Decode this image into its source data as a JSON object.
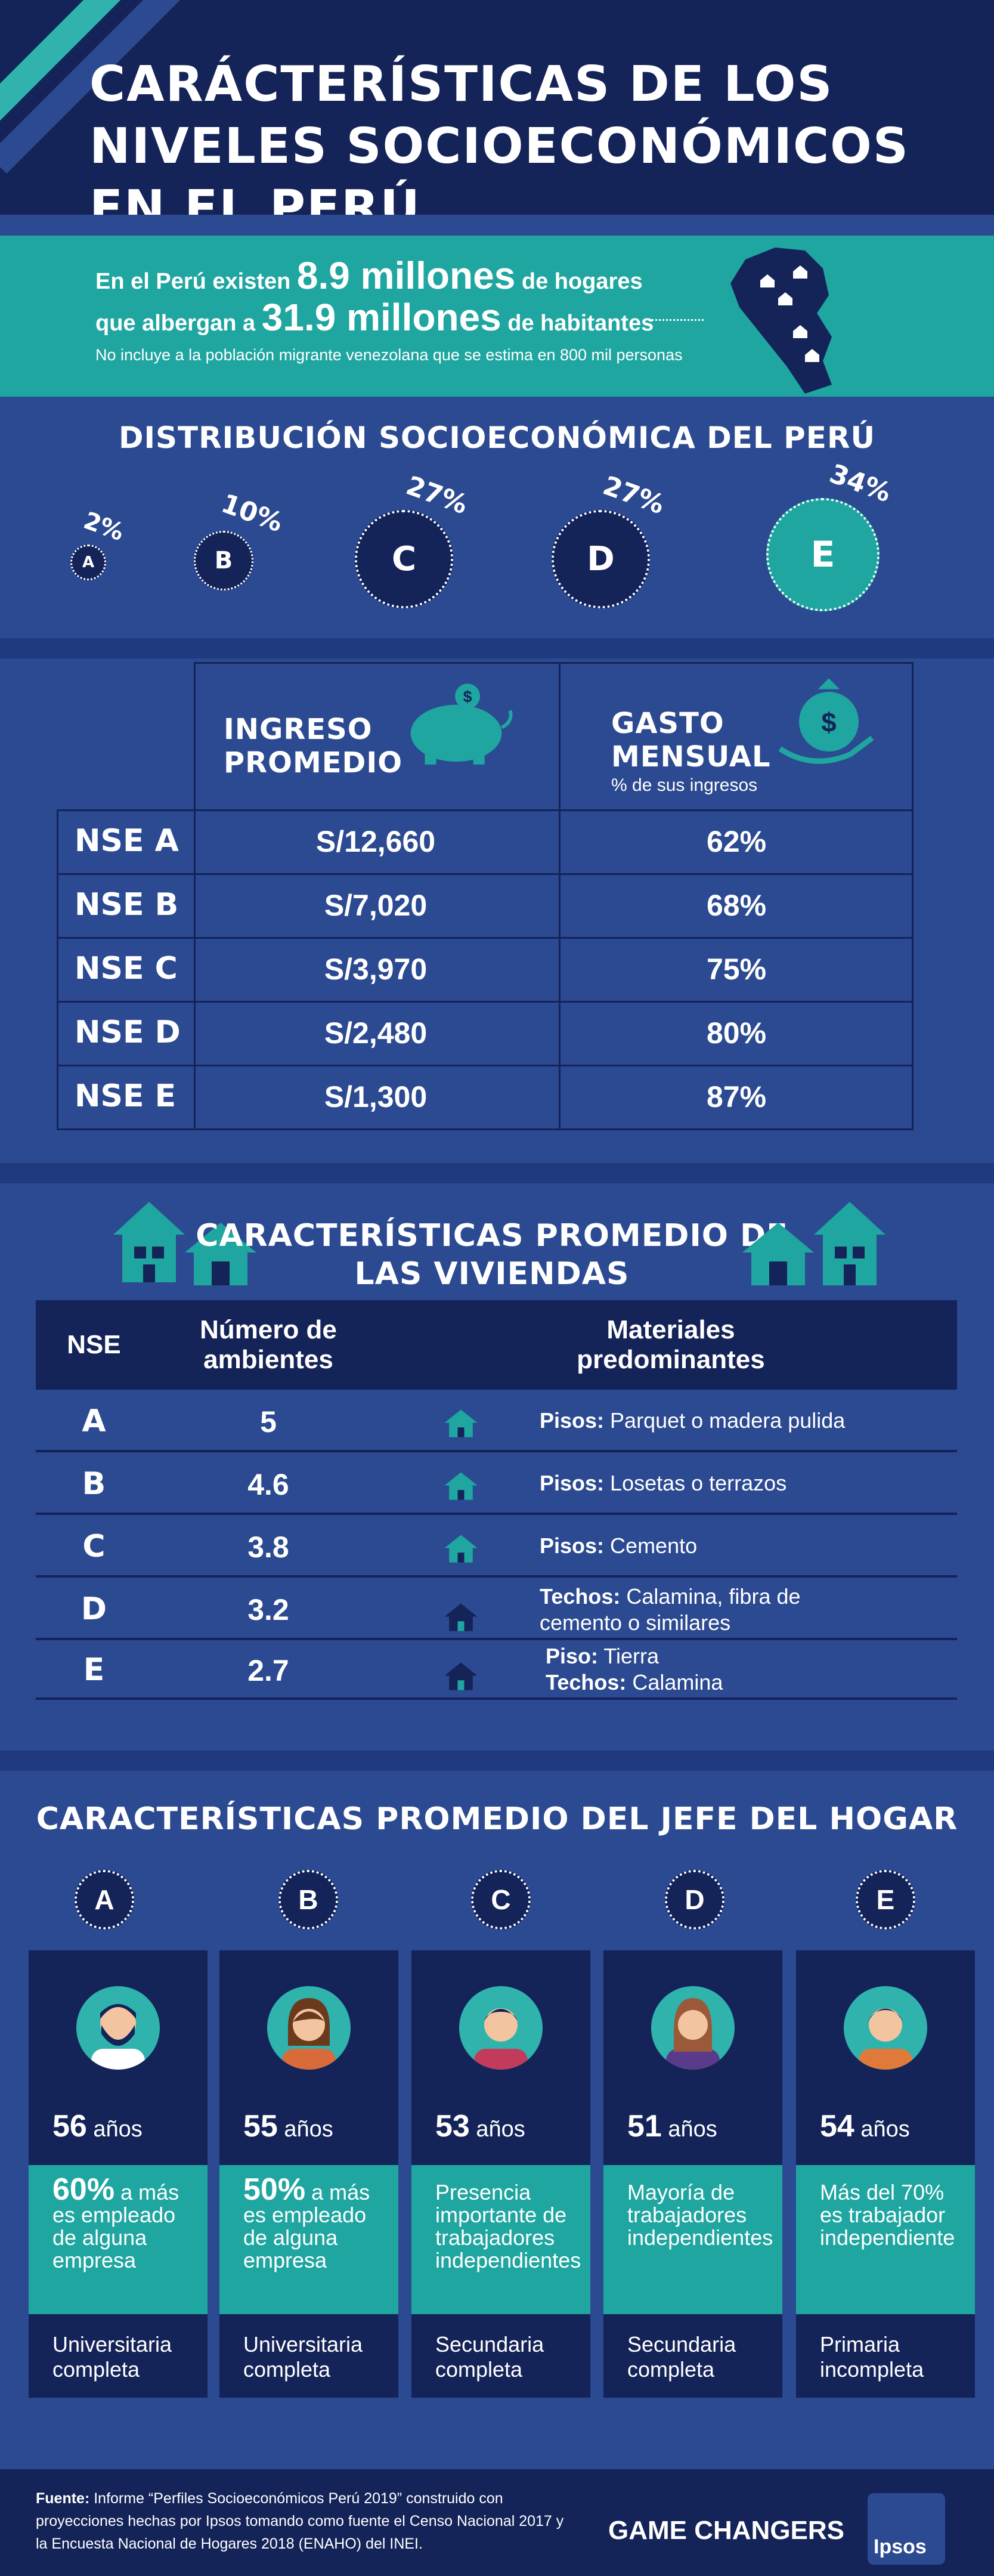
{
  "header": {
    "title": "CARÁCTERÍSTICAS DE LOS NIVELES SOCIOECONÓMICOS EN EL PERÚ"
  },
  "intro": {
    "line1_a": "En el Perú existen ",
    "line1_big": "8.9 millones",
    "line1_b": " de hogares",
    "line2_a": "que albergan a ",
    "line2_big": "31.9 millones",
    "line2_b": " de habitantes",
    "note": "No incluye a la población migrante venezolana que se estima en 800 mil personas"
  },
  "distribution": {
    "title": "DISTRIBUCIÓN SOCIOECONÓMICA DEL PERÚ",
    "items": [
      {
        "label": "A",
        "pct": "2%"
      },
      {
        "label": "B",
        "pct": "10%"
      },
      {
        "label": "C",
        "pct": "27%"
      },
      {
        "label": "D",
        "pct": "27%"
      },
      {
        "label": "E",
        "pct": "34%"
      }
    ]
  },
  "income": {
    "col1": "INGRESO PROMEDIO",
    "col2": "GASTO MENSUAL",
    "col2_sub": "% de sus ingresos",
    "rows": [
      {
        "nse": "NSE A",
        "ingreso": "S/12,660",
        "gasto": "62%"
      },
      {
        "nse": "NSE B",
        "ingreso": "S/7,020",
        "gasto": "68%"
      },
      {
        "nse": "NSE C",
        "ingreso": "S/3,970",
        "gasto": "75%"
      },
      {
        "nse": "NSE D",
        "ingreso": "S/2,480",
        "gasto": "80%"
      },
      {
        "nse": "NSE E",
        "ingreso": "S/1,300",
        "gasto": "87%"
      }
    ]
  },
  "housing": {
    "title": "CARACTERÍSTICAS PROMEDIO DE LAS VIVIENDAS",
    "headers": {
      "nse": "NSE",
      "rooms": "Número de ambientes",
      "materials": "Materiales predominantes"
    },
    "rows": [
      {
        "nse": "A",
        "rooms": "5",
        "mat": [
          {
            "k": "Pisos:",
            "v": " Parquet o madera pulida"
          }
        ]
      },
      {
        "nse": "B",
        "rooms": "4.6",
        "mat": [
          {
            "k": "Pisos:",
            "v": " Losetas o terrazos"
          }
        ]
      },
      {
        "nse": "C",
        "rooms": "3.8",
        "mat": [
          {
            "k": "Pisos:",
            "v": " Cemento"
          }
        ]
      },
      {
        "nse": "D",
        "rooms": "3.2",
        "mat": [
          {
            "k": "Techos:",
            "v": " Calamina, fibra de cemento o similares"
          }
        ]
      },
      {
        "nse": "E",
        "rooms": "2.7",
        "mat": [
          {
            "k": "Piso:",
            "v": " Tierra"
          },
          {
            "k": "Techos:",
            "v": " Calamina"
          }
        ]
      }
    ]
  },
  "jefe": {
    "title": "CARACTERÍSTICAS PROMEDIO DEL JEFE DEL HOGAR",
    "columns": [
      {
        "letter": "A",
        "age": "56",
        "age_unit": " años",
        "desc_big": "60%",
        "desc": " a más es empleado de alguna empresa",
        "edu": "Universitaria completa"
      },
      {
        "letter": "B",
        "age": "55",
        "age_unit": " años",
        "desc_big": "50%",
        "desc": " a más es empleado de alguna empresa",
        "edu": "Universitaria completa"
      },
      {
        "letter": "C",
        "age": "53",
        "age_unit": " años",
        "desc_big": "",
        "desc": "Presencia importante de trabajadores independientes",
        "edu": "Secundaria completa"
      },
      {
        "letter": "D",
        "age": "51",
        "age_unit": " años",
        "desc_big": "",
        "desc": "Mayoría de trabajadores independientes",
        "edu": "Secundaria completa"
      },
      {
        "letter": "E",
        "age": "54",
        "age_unit": " años",
        "desc_big": "",
        "desc": "Más del 70% es trabajador independiente",
        "edu": "Primaria incompleta"
      }
    ]
  },
  "footer": {
    "source_label": "Fuente:",
    "source_text": " Informe “Perfiles Socioeconómicos Perú 2019” construido con proyecciones hechas por Ipsos tomando como fuente el Censo Nacional 2017 y la Encuesta Nacional de Hogares 2018 (ENAHO) del INEI.",
    "tagline": "GAME CHANGERS",
    "logo": "Ipsos"
  },
  "colors": {
    "navy": "#142358",
    "blue": "#2c4a91",
    "teal": "#1fa6a0"
  }
}
